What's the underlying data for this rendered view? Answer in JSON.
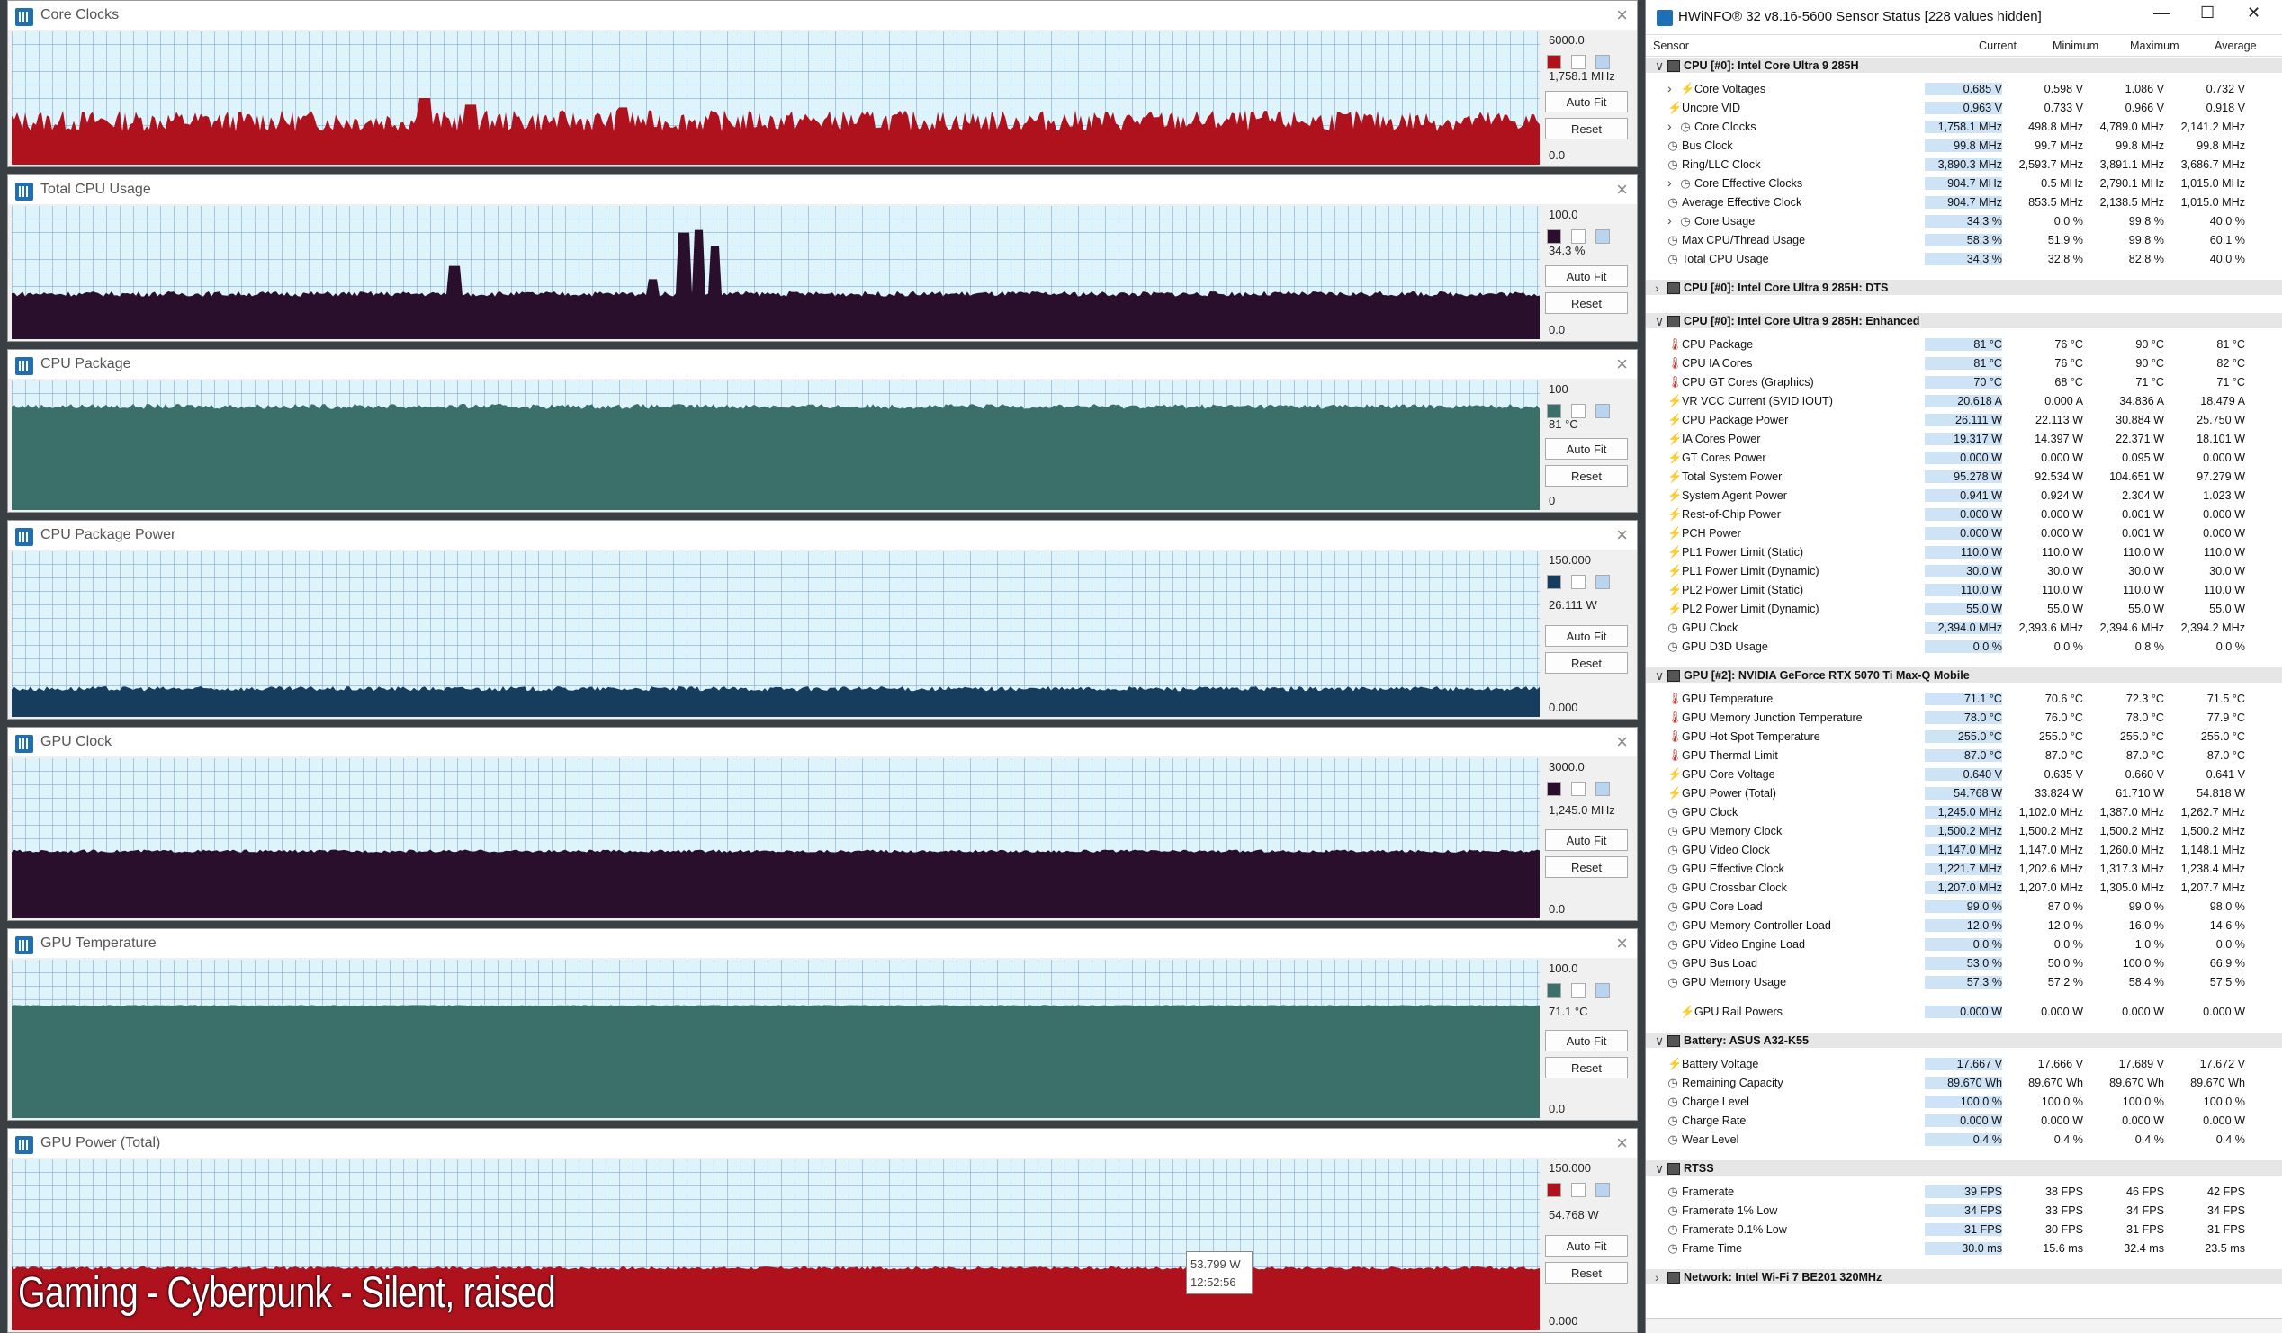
{
  "colors": {
    "red": "#b0121d",
    "purple": "#2a0f2c",
    "teal": "#3a6f6a",
    "navy": "#163c5e"
  },
  "graphs": [
    {
      "title": "Core Clocks",
      "max": "6000.0",
      "current": "1,758.1 MHz",
      "min": "0.0",
      "auto_fit": "Auto Fit",
      "reset": "Reset",
      "color": "#b0121d",
      "level": 0.33,
      "noise": 0.08,
      "spikes": [
        [
          0.27,
          0.5
        ],
        [
          0.3,
          0.45
        ],
        [
          0.4,
          0.43
        ]
      ]
    },
    {
      "title": "Total CPU Usage",
      "max": "100.0",
      "current": "34.3 %",
      "min": "0.0",
      "auto_fit": "Auto Fit",
      "reset": "Reset",
      "color": "#2a0f2c",
      "level": 0.34,
      "noise": 0.02,
      "spikes": [
        [
          0.29,
          0.55
        ],
        [
          0.42,
          0.45
        ],
        [
          0.44,
          0.8
        ],
        [
          0.45,
          0.82
        ],
        [
          0.46,
          0.7
        ]
      ]
    },
    {
      "title": "CPU Package",
      "max": "100",
      "current": "81 °C",
      "min": "0",
      "auto_fit": "Auto Fit",
      "reset": "Reset",
      "color": "#3a6f6a",
      "level": 0.8,
      "noise": 0.02,
      "spikes": []
    },
    {
      "title": "CPU Package Power",
      "max": "150.000",
      "current": "26.111 W",
      "min": "0.000",
      "auto_fit": "Auto Fit",
      "reset": "Reset",
      "color": "#163c5e",
      "level": 0.17,
      "noise": 0.015,
      "spikes": []
    },
    {
      "title": "GPU Clock",
      "max": "3000.0",
      "current": "1,245.0 MHz",
      "min": "0.0",
      "auto_fit": "Auto Fit",
      "reset": "Reset",
      "color": "#2a0f2c",
      "level": 0.42,
      "noise": 0.01,
      "spikes": []
    },
    {
      "title": "GPU Temperature",
      "max": "100.0",
      "current": "71.1 °C",
      "min": "0.0",
      "auto_fit": "Auto Fit",
      "reset": "Reset",
      "color": "#3a6f6a",
      "level": 0.711,
      "noise": 0.003,
      "spikes": []
    },
    {
      "title": "GPU Power (Total)",
      "max": "150.000",
      "current": "54.768 W",
      "min": "0.000",
      "auto_fit": "Auto Fit",
      "reset": "Reset",
      "color": "#b0121d",
      "level": 0.365,
      "noise": 0.01,
      "spikes": []
    }
  ],
  "overlay_text": "Gaming - Cyberpunk - Silent, raised",
  "tooltip": {
    "value": "53.799 W",
    "time": "12:52:56"
  },
  "hwinfo": {
    "title": "HWiNFO® 32 v8.16-5600 Sensor Status [228 values hidden]",
    "columns": [
      "Sensor",
      "Current",
      "Minimum",
      "Maximum",
      "Average"
    ],
    "rows": [
      {
        "t": "g",
        "label": "CPU [#0]: Intel Core Ultra 9 285H",
        "exp": "v"
      },
      {
        "t": "r",
        "icon": "bolt",
        "exp": ">",
        "label": "Core Voltages",
        "cur": "0.685 V",
        "min": "0.598 V",
        "max": "1.086 V",
        "avg": "0.732 V"
      },
      {
        "t": "r",
        "icon": "bolt",
        "label": "Uncore VID",
        "cur": "0.963 V",
        "min": "0.733 V",
        "max": "0.966 V",
        "avg": "0.918 V"
      },
      {
        "t": "r",
        "icon": "clock",
        "exp": ">",
        "label": "Core Clocks",
        "cur": "1,758.1 MHz",
        "min": "498.8 MHz",
        "max": "4,789.0 MHz",
        "avg": "2,141.2 MHz"
      },
      {
        "t": "r",
        "icon": "clock",
        "label": "Bus Clock",
        "cur": "99.8 MHz",
        "min": "99.7 MHz",
        "max": "99.8 MHz",
        "avg": "99.8 MHz"
      },
      {
        "t": "r",
        "icon": "clock",
        "label": "Ring/LLC Clock",
        "cur": "3,890.3 MHz",
        "min": "2,593.7 MHz",
        "max": "3,891.1 MHz",
        "avg": "3,686.7 MHz"
      },
      {
        "t": "r",
        "icon": "clock",
        "exp": ">",
        "label": "Core Effective Clocks",
        "cur": "904.7 MHz",
        "min": "0.5 MHz",
        "max": "2,790.1 MHz",
        "avg": "1,015.0 MHz"
      },
      {
        "t": "r",
        "icon": "clock",
        "label": "Average Effective Clock",
        "cur": "904.7 MHz",
        "min": "853.5 MHz",
        "max": "2,138.5 MHz",
        "avg": "1,015.0 MHz"
      },
      {
        "t": "r",
        "icon": "clock",
        "exp": ">",
        "label": "Core Usage",
        "cur": "34.3 %",
        "min": "0.0 %",
        "max": "99.8 %",
        "avg": "40.0 %"
      },
      {
        "t": "r",
        "icon": "clock",
        "label": "Max CPU/Thread Usage",
        "cur": "58.3 %",
        "min": "51.9 %",
        "max": "99.8 %",
        "avg": "60.1 %"
      },
      {
        "t": "r",
        "icon": "clock",
        "label": "Total CPU Usage",
        "cur": "34.3 %",
        "min": "32.8 %",
        "max": "82.8 %",
        "avg": "40.0 %"
      },
      {
        "t": "s"
      },
      {
        "t": "g",
        "label": "CPU [#0]: Intel Core Ultra 9 285H: DTS",
        "exp": ">"
      },
      {
        "t": "s"
      },
      {
        "t": "g",
        "label": "CPU [#0]: Intel Core Ultra 9 285H: Enhanced",
        "exp": "v"
      },
      {
        "t": "r",
        "icon": "therm",
        "label": "CPU Package",
        "cur": "81 °C",
        "min": "76 °C",
        "max": "90 °C",
        "avg": "81 °C"
      },
      {
        "t": "r",
        "icon": "therm",
        "label": "CPU IA Cores",
        "cur": "81 °C",
        "min": "76 °C",
        "max": "90 °C",
        "avg": "82 °C"
      },
      {
        "t": "r",
        "icon": "therm",
        "label": "CPU GT Cores (Graphics)",
        "cur": "70 °C",
        "min": "68 °C",
        "max": "71 °C",
        "avg": "71 °C"
      },
      {
        "t": "r",
        "icon": "bolt",
        "label": "VR VCC Current (SVID IOUT)",
        "cur": "20.618 A",
        "min": "0.000 A",
        "max": "34.836 A",
        "avg": "18.479 A"
      },
      {
        "t": "r",
        "icon": "bolt",
        "label": "CPU Package Power",
        "cur": "26.111 W",
        "min": "22.113 W",
        "max": "30.884 W",
        "avg": "25.750 W"
      },
      {
        "t": "r",
        "icon": "bolt",
        "label": "IA Cores Power",
        "cur": "19.317 W",
        "min": "14.397 W",
        "max": "22.371 W",
        "avg": "18.101 W"
      },
      {
        "t": "r",
        "icon": "bolt",
        "label": "GT Cores Power",
        "cur": "0.000 W",
        "min": "0.000 W",
        "max": "0.095 W",
        "avg": "0.000 W"
      },
      {
        "t": "r",
        "icon": "bolt",
        "label": "Total System Power",
        "cur": "95.278 W",
        "min": "92.534 W",
        "max": "104.651 W",
        "avg": "97.279 W"
      },
      {
        "t": "r",
        "icon": "bolt",
        "label": "System Agent Power",
        "cur": "0.941 W",
        "min": "0.924 W",
        "max": "2.304 W",
        "avg": "1.023 W"
      },
      {
        "t": "r",
        "icon": "bolt",
        "label": "Rest-of-Chip Power",
        "cur": "0.000 W",
        "min": "0.000 W",
        "max": "0.001 W",
        "avg": "0.000 W"
      },
      {
        "t": "r",
        "icon": "bolt",
        "label": "PCH Power",
        "cur": "0.000 W",
        "min": "0.000 W",
        "max": "0.001 W",
        "avg": "0.000 W"
      },
      {
        "t": "r",
        "icon": "bolt",
        "label": "PL1 Power Limit (Static)",
        "cur": "110.0 W",
        "min": "110.0 W",
        "max": "110.0 W",
        "avg": "110.0 W"
      },
      {
        "t": "r",
        "icon": "bolt",
        "label": "PL1 Power Limit (Dynamic)",
        "cur": "30.0 W",
        "min": "30.0 W",
        "max": "30.0 W",
        "avg": "30.0 W"
      },
      {
        "t": "r",
        "icon": "bolt",
        "label": "PL2 Power Limit (Static)",
        "cur": "110.0 W",
        "min": "110.0 W",
        "max": "110.0 W",
        "avg": "110.0 W"
      },
      {
        "t": "r",
        "icon": "bolt",
        "label": "PL2 Power Limit (Dynamic)",
        "cur": "55.0 W",
        "min": "55.0 W",
        "max": "55.0 W",
        "avg": "55.0 W"
      },
      {
        "t": "r",
        "icon": "clock",
        "label": "GPU Clock",
        "cur": "2,394.0 MHz",
        "min": "2,393.6 MHz",
        "max": "2,394.6 MHz",
        "avg": "2,394.2 MHz"
      },
      {
        "t": "r",
        "icon": "clock",
        "label": "GPU D3D Usage",
        "cur": "0.0 %",
        "min": "0.0 %",
        "max": "0.8 %",
        "avg": "0.0 %"
      },
      {
        "t": "s"
      },
      {
        "t": "g",
        "label": "GPU [#2]: NVIDIA  GeForce RTX 5070 Ti Max-Q Mobile",
        "exp": "v"
      },
      {
        "t": "r",
        "icon": "therm",
        "label": "GPU Temperature",
        "cur": "71.1 °C",
        "min": "70.6 °C",
        "max": "72.3 °C",
        "avg": "71.5 °C"
      },
      {
        "t": "r",
        "icon": "therm",
        "label": "GPU Memory Junction Temperature",
        "cur": "78.0 °C",
        "min": "76.0 °C",
        "max": "78.0 °C",
        "avg": "77.9 °C"
      },
      {
        "t": "r",
        "icon": "therm",
        "label": "GPU Hot Spot Temperature",
        "cur": "255.0 °C",
        "min": "255.0 °C",
        "max": "255.0 °C",
        "avg": "255.0 °C"
      },
      {
        "t": "r",
        "icon": "therm",
        "label": "GPU Thermal Limit",
        "cur": "87.0 °C",
        "min": "87.0 °C",
        "max": "87.0 °C",
        "avg": "87.0 °C"
      },
      {
        "t": "r",
        "icon": "bolt",
        "label": "GPU Core Voltage",
        "cur": "0.640 V",
        "min": "0.635 V",
        "max": "0.660 V",
        "avg": "0.641 V"
      },
      {
        "t": "r",
        "icon": "bolt",
        "label": "GPU Power (Total)",
        "cur": "54.768 W",
        "min": "33.824 W",
        "max": "61.710 W",
        "avg": "54.818 W"
      },
      {
        "t": "r",
        "icon": "clock",
        "label": "GPU Clock",
        "cur": "1,245.0 MHz",
        "min": "1,102.0 MHz",
        "max": "1,387.0 MHz",
        "avg": "1,262.7 MHz"
      },
      {
        "t": "r",
        "icon": "clock",
        "label": "GPU Memory Clock",
        "cur": "1,500.2 MHz",
        "min": "1,500.2 MHz",
        "max": "1,500.2 MHz",
        "avg": "1,500.2 MHz"
      },
      {
        "t": "r",
        "icon": "clock",
        "label": "GPU Video Clock",
        "cur": "1,147.0 MHz",
        "min": "1,147.0 MHz",
        "max": "1,260.0 MHz",
        "avg": "1,148.1 MHz"
      },
      {
        "t": "r",
        "icon": "clock",
        "label": "GPU Effective Clock",
        "cur": "1,221.7 MHz",
        "min": "1,202.6 MHz",
        "max": "1,317.3 MHz",
        "avg": "1,238.4 MHz"
      },
      {
        "t": "r",
        "icon": "clock",
        "label": "GPU Crossbar Clock",
        "cur": "1,207.0 MHz",
        "min": "1,207.0 MHz",
        "max": "1,305.0 MHz",
        "avg": "1,207.7 MHz"
      },
      {
        "t": "r",
        "icon": "clock",
        "label": "GPU Core Load",
        "cur": "99.0 %",
        "min": "87.0 %",
        "max": "99.0 %",
        "avg": "98.0 %"
      },
      {
        "t": "r",
        "icon": "clock",
        "label": "GPU Memory Controller Load",
        "cur": "12.0 %",
        "min": "12.0 %",
        "max": "16.0 %",
        "avg": "14.6 %"
      },
      {
        "t": "r",
        "icon": "clock",
        "label": "GPU Video Engine Load",
        "cur": "0.0 %",
        "min": "0.0 %",
        "max": "1.0 %",
        "avg": "0.0 %"
      },
      {
        "t": "r",
        "icon": "clock",
        "label": "GPU Bus Load",
        "cur": "53.0 %",
        "min": "50.0 %",
        "max": "100.0 %",
        "avg": "66.9 %"
      },
      {
        "t": "r",
        "icon": "clock",
        "label": "GPU Memory Usage",
        "cur": "57.3 %",
        "min": "57.2 %",
        "max": "58.4 %",
        "avg": "57.5 %"
      },
      {
        "t": "s"
      },
      {
        "t": "r",
        "icon": "bolt",
        "indent": true,
        "label": "GPU Rail Powers",
        "cur": "0.000 W",
        "min": "0.000 W",
        "max": "0.000 W",
        "avg": "0.000 W"
      },
      {
        "t": "s"
      },
      {
        "t": "g",
        "label": "Battery: ASUS  A32-K55",
        "exp": "v"
      },
      {
        "t": "r",
        "icon": "bolt",
        "label": "Battery Voltage",
        "cur": "17.667 V",
        "min": "17.666 V",
        "max": "17.689 V",
        "avg": "17.672 V"
      },
      {
        "t": "r",
        "icon": "clock",
        "label": "Remaining Capacity",
        "cur": "89.670 Wh",
        "min": "89.670 Wh",
        "max": "89.670 Wh",
        "avg": "89.670 Wh"
      },
      {
        "t": "r",
        "icon": "clock",
        "label": "Charge Level",
        "cur": "100.0 %",
        "min": "100.0 %",
        "max": "100.0 %",
        "avg": "100.0 %"
      },
      {
        "t": "r",
        "icon": "clock",
        "label": "Charge Rate",
        "cur": "0.000 W",
        "min": "0.000 W",
        "max": "0.000 W",
        "avg": "0.000 W"
      },
      {
        "t": "r",
        "icon": "clock",
        "label": "Wear Level",
        "cur": "0.4 %",
        "min": "0.4 %",
        "max": "0.4 %",
        "avg": "0.4 %"
      },
      {
        "t": "s"
      },
      {
        "t": "g",
        "label": "RTSS",
        "exp": "v"
      },
      {
        "t": "r",
        "icon": "clock",
        "label": "Framerate",
        "cur": "39 FPS",
        "min": "38 FPS",
        "max": "46 FPS",
        "avg": "42 FPS"
      },
      {
        "t": "r",
        "icon": "clock",
        "label": "Framerate 1% Low",
        "cur": "34 FPS",
        "min": "33 FPS",
        "max": "34 FPS",
        "avg": "34 FPS"
      },
      {
        "t": "r",
        "icon": "clock",
        "label": "Framerate 0.1% Low",
        "cur": "31 FPS",
        "min": "30 FPS",
        "max": "31 FPS",
        "avg": "31 FPS"
      },
      {
        "t": "r",
        "icon": "clock",
        "label": "Frame Time",
        "cur": "30.0 ms",
        "min": "15.6 ms",
        "max": "32.4 ms",
        "avg": "23.5 ms"
      },
      {
        "t": "s"
      },
      {
        "t": "g",
        "label": "Network: Intel Wi-Fi 7 BE201 320MHz",
        "exp": ">"
      }
    ]
  }
}
